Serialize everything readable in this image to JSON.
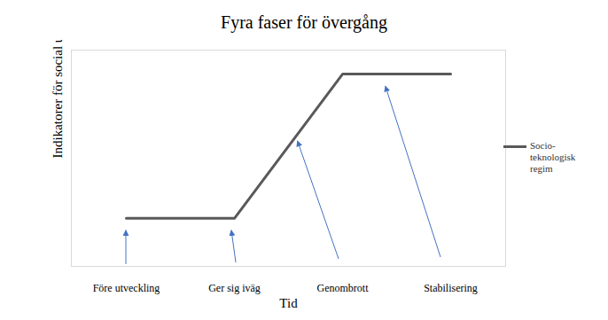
{
  "chart_data": {
    "type": "line",
    "title": "Fyra faser för övergång",
    "x_label": "Tid",
    "y_label": "Indikatorer för social utveckling",
    "categories": [
      "Före utveckling",
      "Ger sig iväg",
      "Genombrott",
      "Stabilisering"
    ],
    "series": [
      {
        "name": "Socio-teknologisk regim",
        "color": "#595959",
        "values": [
          1,
          1,
          4,
          4
        ]
      }
    ],
    "ylim": [
      0,
      4.5
    ],
    "yticks": [],
    "grid": false,
    "legend": "right",
    "tick_labels": "x"
  }
}
